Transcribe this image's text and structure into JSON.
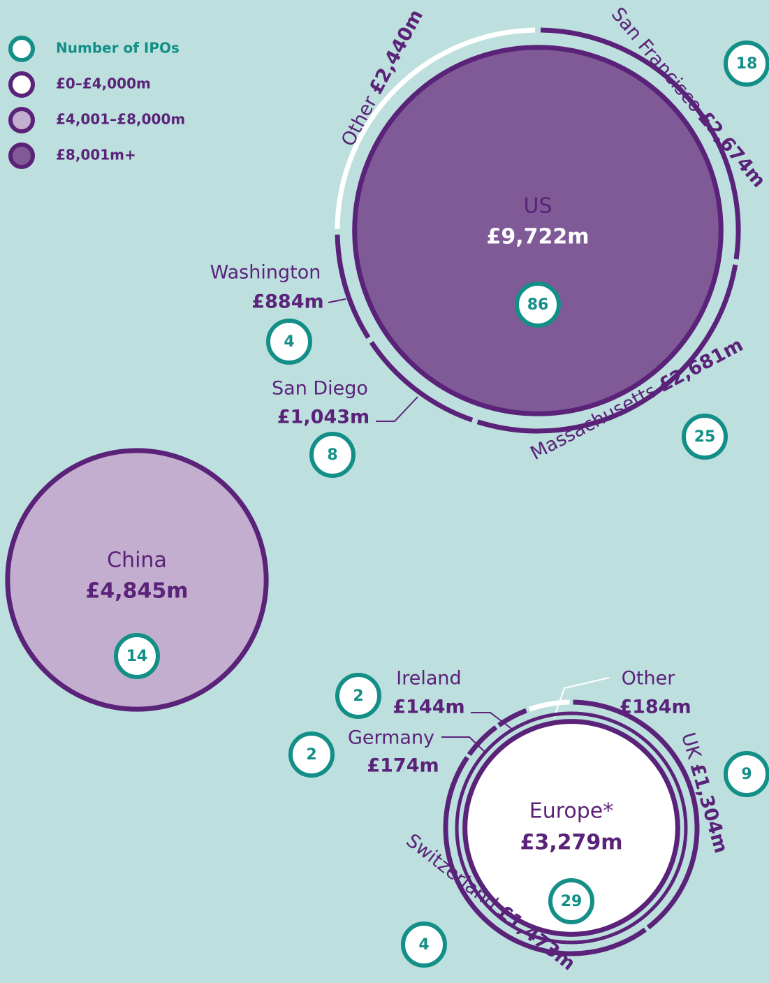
{
  "chart_data": {
    "type": "bubble",
    "legend": [
      {
        "label": "Number of IPOs",
        "color": "#138f87"
      },
      {
        "label": "£0–£4,000m",
        "color": "#ffffff"
      },
      {
        "label": "£4,001–£8,000m",
        "color": "#c4aecf"
      },
      {
        "label": "£8,001m+",
        "color": "#7f5a96"
      }
    ],
    "regions": [
      {
        "name": "US",
        "value": 9722,
        "value_label": "£9,722m",
        "ipos": 86,
        "color": "#7f5a96",
        "subregions": [
          {
            "name": "San Francisco",
            "value": 2674,
            "value_label": "£2,674m",
            "ipos": 18,
            "color": "#5a2278"
          },
          {
            "name": "Massachusetts",
            "value": 2681,
            "value_label": "£2,681m",
            "ipos": 25,
            "color": "#5a2278"
          },
          {
            "name": "San Diego",
            "value": 1043,
            "value_label": "£1,043m",
            "ipos": 8,
            "color": "#5a2278"
          },
          {
            "name": "Washington",
            "value": 884,
            "value_label": "£884m",
            "ipos": 4,
            "color": "#5a2278"
          },
          {
            "name": "Other",
            "value": 2440,
            "value_label": "£2,440m",
            "color": "#ffffff"
          }
        ]
      },
      {
        "name": "China",
        "value": 4845,
        "value_label": "£4,845m",
        "ipos": 14,
        "color": "#c4aecf",
        "subregions": []
      },
      {
        "name": "Europe*",
        "value": 3279,
        "value_label": "£3,279m",
        "ipos": 29,
        "color": "#ffffff",
        "subregions": [
          {
            "name": "UK",
            "value": 1304,
            "value_label": "£1,304m",
            "ipos": 9,
            "color": "#5a2278"
          },
          {
            "name": "Switzerland",
            "value": 1473,
            "value_label": "£1,473m",
            "ipos": 4,
            "color": "#5a2278"
          },
          {
            "name": "Germany",
            "value": 174,
            "value_label": "£174m",
            "ipos": 2,
            "color": "#5a2278"
          },
          {
            "name": "Ireland",
            "value": 144,
            "value_label": "£144m",
            "ipos": 2,
            "color": "#5a2278"
          },
          {
            "name": "Other",
            "value": 184,
            "value_label": "£184m",
            "color": "#ffffff"
          }
        ]
      }
    ]
  }
}
